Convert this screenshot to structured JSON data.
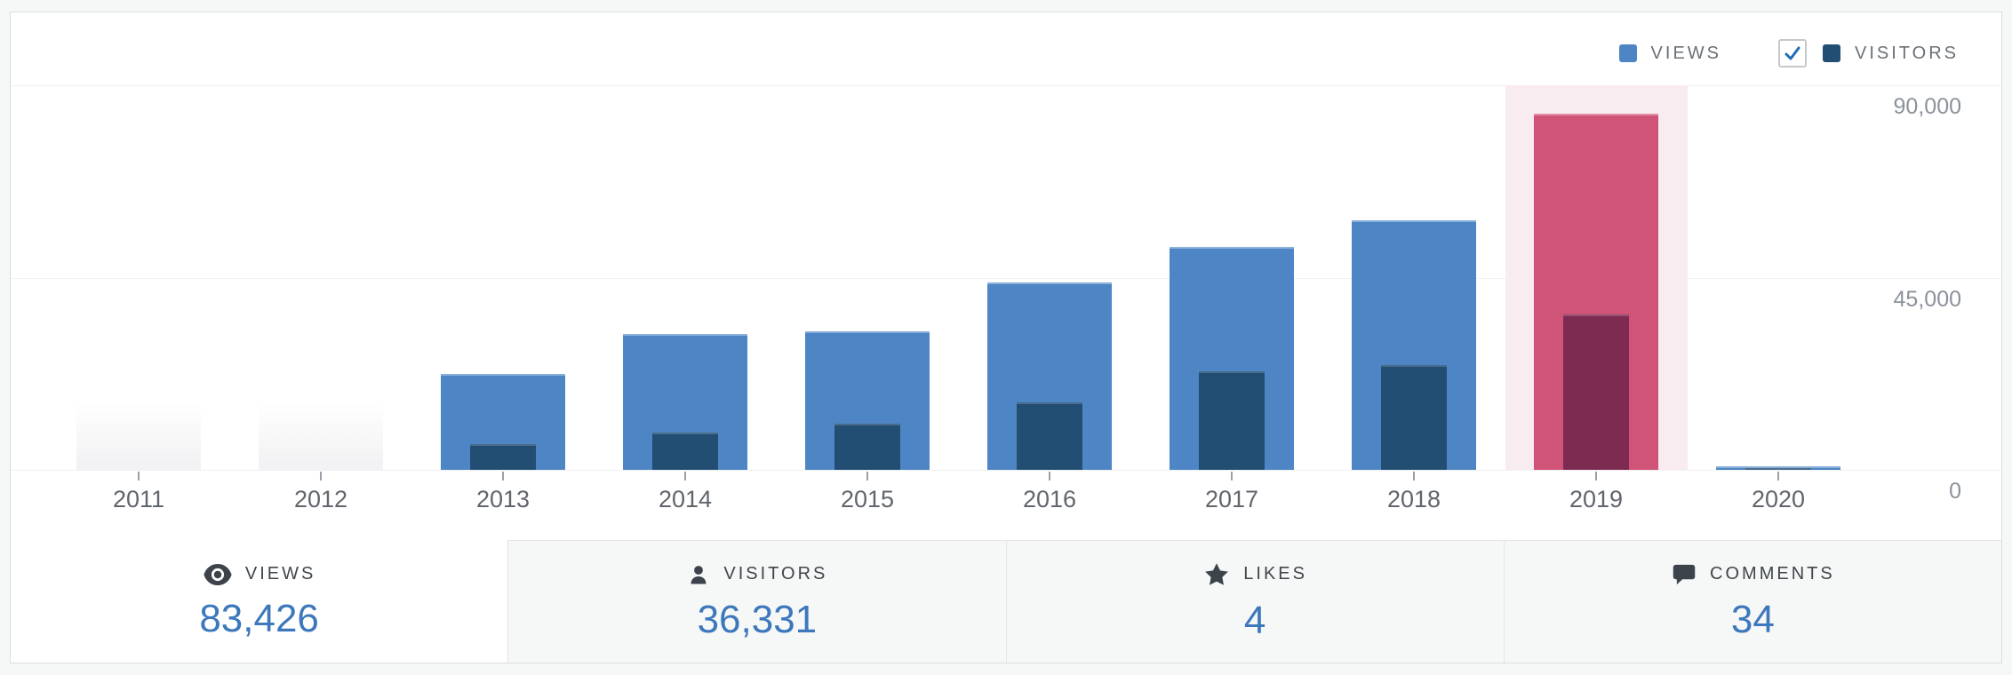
{
  "colors": {
    "views": "#4e86c5",
    "visitors": "#234e74",
    "views_selected": "#d05478",
    "visitors_selected": "#7e2b52",
    "selection_band": "#f8ecf1",
    "value_text": "#3c78bb",
    "checkbox_check": "#1d6fb8"
  },
  "legend": {
    "views_label": "VIEWS",
    "visitors_label": "VISITORS",
    "visitors_checkbox_checked": true
  },
  "chart_data": {
    "type": "bar",
    "title": "",
    "categories": [
      "2011",
      "2012",
      "2013",
      "2014",
      "2015",
      "2016",
      "2017",
      "2018",
      "2019",
      "2020"
    ],
    "series": [
      {
        "name": "Views",
        "values": [
          null,
          null,
          22400,
          31800,
          32400,
          43900,
          52200,
          58400,
          83426,
          900
        ]
      },
      {
        "name": "Visitors",
        "values": [
          null,
          null,
          6000,
          8700,
          10800,
          15800,
          23100,
          24500,
          36331,
          400
        ]
      }
    ],
    "ylim": [
      0,
      90000
    ],
    "y_ticks": [
      {
        "label": "90,000",
        "value": 90000
      },
      {
        "label": "45,000",
        "value": 45000
      },
      {
        "label": "0",
        "value": 0
      }
    ],
    "selected_category": "2019",
    "no_data_categories": [
      "2011",
      "2012"
    ],
    "grid": "horizontal",
    "legend_position": "top-right"
  },
  "summary": {
    "tabs": [
      {
        "id": "views",
        "label": "VIEWS",
        "value": "83,426",
        "selected": true
      },
      {
        "id": "visitors",
        "label": "VISITORS",
        "value": "36,331",
        "selected": false
      },
      {
        "id": "likes",
        "label": "LIKES",
        "value": "4",
        "selected": false
      },
      {
        "id": "comments",
        "label": "COMMENTS",
        "value": "34",
        "selected": false
      }
    ]
  }
}
